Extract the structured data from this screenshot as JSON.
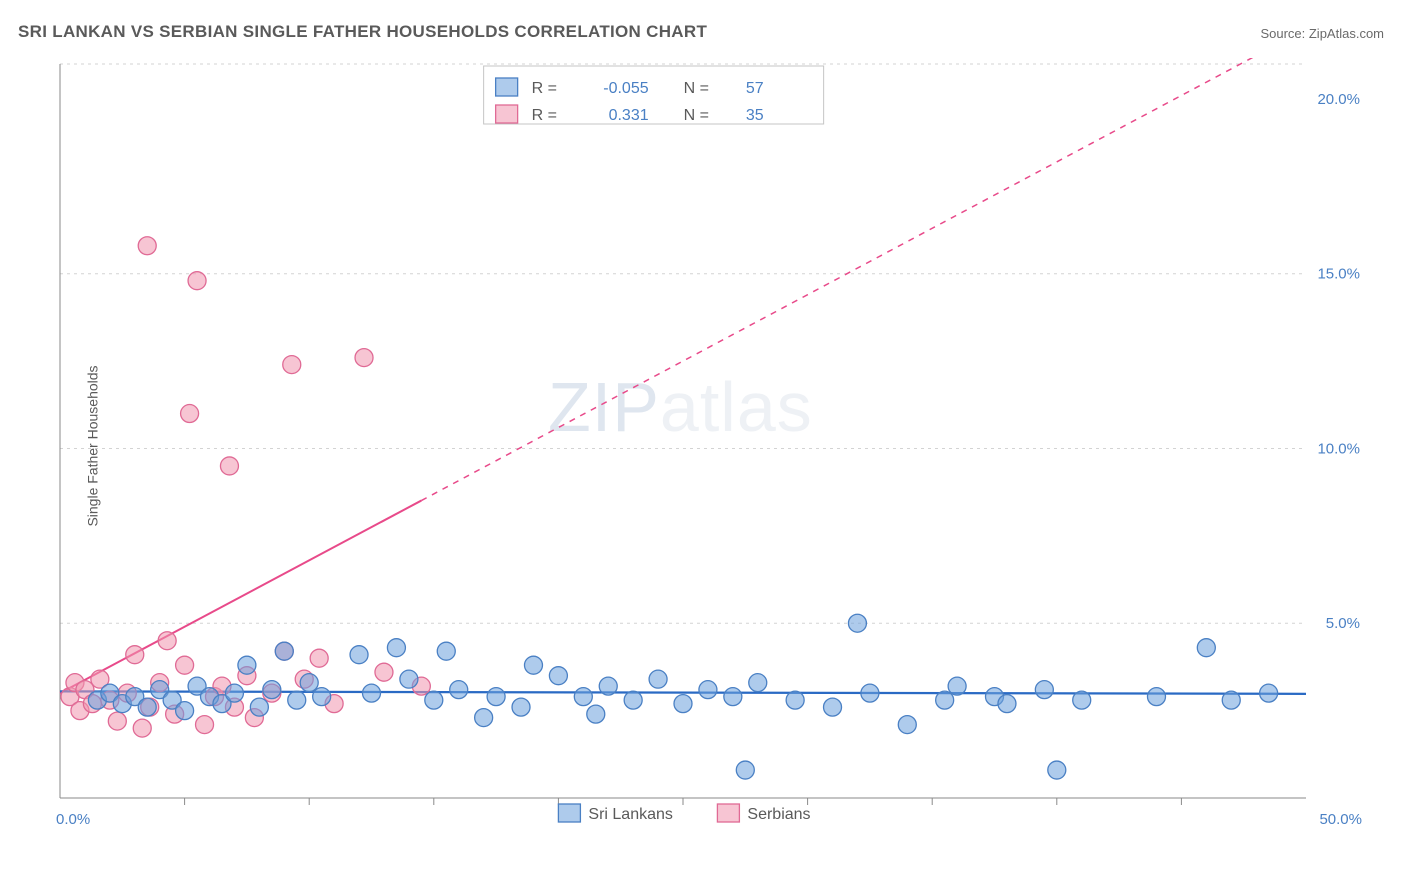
{
  "title": "SRI LANKAN VS SERBIAN SINGLE FATHER HOUSEHOLDS CORRELATION CHART",
  "source_label": "Source: ZipAtlas.com",
  "y_axis_label": "Single Father Households",
  "watermark_bold": "ZIP",
  "watermark_light": "atlas",
  "chart": {
    "type": "scatter",
    "xlim": [
      0,
      50
    ],
    "ylim": [
      0,
      21
    ],
    "x_ticks_minor": [
      5,
      10,
      15,
      20,
      25,
      30,
      35,
      40,
      45
    ],
    "x_tick_labels": [
      {
        "v": 0,
        "label": "0.0%"
      },
      {
        "v": 50,
        "label": "50.0%"
      }
    ],
    "y_tick_labels": [
      {
        "v": 5,
        "label": "5.0%"
      },
      {
        "v": 10,
        "label": "10.0%"
      },
      {
        "v": 15,
        "label": "15.0%"
      },
      {
        "v": 20,
        "label": "20.0%"
      }
    ],
    "grid_y": [
      5,
      10,
      15,
      21
    ],
    "background_color": "#ffffff",
    "grid_color": "#d3d3d3",
    "series": [
      {
        "name": "Sri Lankans",
        "color_fill": "#6ca0dc",
        "color_stroke": "#4a80c4",
        "marker_size": 9,
        "points": [
          [
            1.5,
            2.8
          ],
          [
            2.0,
            3.0
          ],
          [
            2.5,
            2.7
          ],
          [
            3.0,
            2.9
          ],
          [
            3.5,
            2.6
          ],
          [
            4.0,
            3.1
          ],
          [
            4.5,
            2.8
          ],
          [
            5.0,
            2.5
          ],
          [
            5.5,
            3.2
          ],
          [
            6.0,
            2.9
          ],
          [
            6.5,
            2.7
          ],
          [
            7.0,
            3.0
          ],
          [
            7.5,
            3.8
          ],
          [
            8.0,
            2.6
          ],
          [
            8.5,
            3.1
          ],
          [
            9.0,
            4.2
          ],
          [
            9.5,
            2.8
          ],
          [
            10.0,
            3.3
          ],
          [
            10.5,
            2.9
          ],
          [
            12.0,
            4.1
          ],
          [
            12.5,
            3.0
          ],
          [
            13.5,
            4.3
          ],
          [
            14.0,
            3.4
          ],
          [
            15.0,
            2.8
          ],
          [
            15.5,
            4.2
          ],
          [
            16.0,
            3.1
          ],
          [
            17.0,
            2.3
          ],
          [
            17.5,
            2.9
          ],
          [
            18.5,
            2.6
          ],
          [
            19.0,
            3.8
          ],
          [
            20.0,
            3.5
          ],
          [
            21.0,
            2.9
          ],
          [
            21.5,
            2.4
          ],
          [
            22.0,
            3.2
          ],
          [
            23.0,
            2.8
          ],
          [
            24.0,
            3.4
          ],
          [
            25.0,
            2.7
          ],
          [
            26.0,
            3.1
          ],
          [
            27.0,
            2.9
          ],
          [
            27.5,
            0.8
          ],
          [
            28.0,
            3.3
          ],
          [
            29.5,
            2.8
          ],
          [
            31.0,
            2.6
          ],
          [
            32.0,
            5.0
          ],
          [
            32.5,
            3.0
          ],
          [
            34.0,
            2.1
          ],
          [
            35.5,
            2.8
          ],
          [
            36.0,
            3.2
          ],
          [
            37.5,
            2.9
          ],
          [
            38.0,
            2.7
          ],
          [
            39.5,
            3.1
          ],
          [
            40.0,
            0.8
          ],
          [
            41.0,
            2.8
          ],
          [
            44.0,
            2.9
          ],
          [
            46.0,
            4.3
          ],
          [
            47.0,
            2.8
          ],
          [
            48.5,
            3.0
          ]
        ],
        "trend_line": {
          "x1": 0,
          "y1": 3.05,
          "x2": 50,
          "y2": 2.98,
          "solid_until_x": 50
        }
      },
      {
        "name": "Serbians",
        "color_fill": "#f096af",
        "color_stroke": "#e06a95",
        "marker_size": 9,
        "points": [
          [
            0.4,
            2.9
          ],
          [
            0.6,
            3.3
          ],
          [
            0.8,
            2.5
          ],
          [
            1.0,
            3.1
          ],
          [
            1.3,
            2.7
          ],
          [
            1.6,
            3.4
          ],
          [
            2.0,
            2.8
          ],
          [
            2.3,
            2.2
          ],
          [
            2.7,
            3.0
          ],
          [
            3.0,
            4.1
          ],
          [
            3.3,
            2.0
          ],
          [
            3.5,
            15.8
          ],
          [
            3.6,
            2.6
          ],
          [
            4.0,
            3.3
          ],
          [
            4.3,
            4.5
          ],
          [
            4.6,
            2.4
          ],
          [
            5.0,
            3.8
          ],
          [
            5.2,
            11.0
          ],
          [
            5.5,
            14.8
          ],
          [
            5.8,
            2.1
          ],
          [
            6.2,
            2.9
          ],
          [
            6.5,
            3.2
          ],
          [
            6.8,
            9.5
          ],
          [
            7.0,
            2.6
          ],
          [
            7.5,
            3.5
          ],
          [
            7.8,
            2.3
          ],
          [
            8.5,
            3.0
          ],
          [
            9.0,
            4.2
          ],
          [
            9.3,
            12.4
          ],
          [
            9.8,
            3.4
          ],
          [
            10.4,
            4.0
          ],
          [
            11.0,
            2.7
          ],
          [
            12.2,
            12.6
          ],
          [
            13.0,
            3.6
          ],
          [
            14.5,
            3.2
          ]
        ],
        "trend_line": {
          "x1": 0,
          "y1": 3.0,
          "x2": 50,
          "y2": 22.0,
          "solid_until_x": 14.5
        }
      }
    ],
    "stats_box": {
      "rows": [
        {
          "swatch": "blue",
          "r": "-0.055",
          "n": "57"
        },
        {
          "swatch": "pink",
          "r": "0.331",
          "n": "35"
        }
      ],
      "label_r": "R =",
      "label_n": "N ="
    },
    "legend": {
      "items": [
        {
          "swatch": "blue",
          "label": "Sri Lankans"
        },
        {
          "swatch": "pink",
          "label": "Serbians"
        }
      ]
    }
  }
}
